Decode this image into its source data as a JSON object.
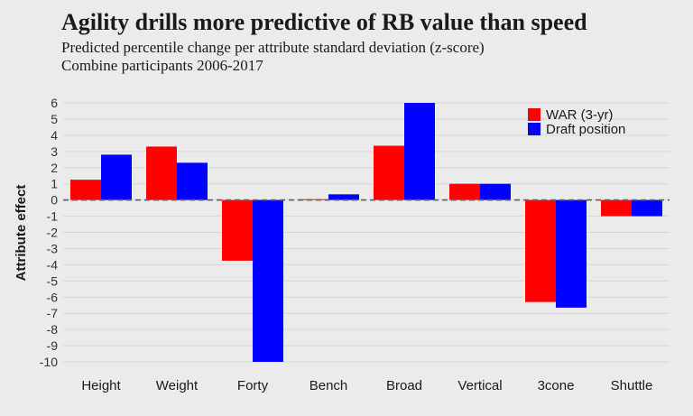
{
  "chart_data": {
    "type": "bar",
    "title": "Agility drills more predictive of RB value than speed",
    "subtitle_lines": [
      "Predicted percentile change per attribute standard deviation (z-score)",
      "Combine participants 2006-2017"
    ],
    "xlabel": "",
    "ylabel": "Attribute effect",
    "categories": [
      "Height",
      "Weight",
      "Forty",
      "Bench",
      "Broad",
      "Vertical",
      "3cone",
      "Shuttle"
    ],
    "series": [
      {
        "name": "WAR (3-yr)",
        "color": "#ff0000",
        "values": [
          1.25,
          3.3,
          -3.75,
          0.05,
          3.35,
          1.0,
          -6.3,
          -1.0
        ]
      },
      {
        "name": "Draft position",
        "color": "#0000ff",
        "values": [
          2.8,
          2.3,
          -10.0,
          0.35,
          6.0,
          1.0,
          -6.65,
          -1.0
        ]
      }
    ],
    "ylim": [
      -10,
      6
    ],
    "yticks": [
      6,
      5,
      4,
      3,
      2,
      1,
      0,
      -1,
      -2,
      -3,
      -4,
      -5,
      -6,
      -7,
      -8,
      -9,
      -10
    ],
    "grid": true,
    "legend": "top-right",
    "reference_line": {
      "y": 0,
      "style": "dashed"
    }
  }
}
